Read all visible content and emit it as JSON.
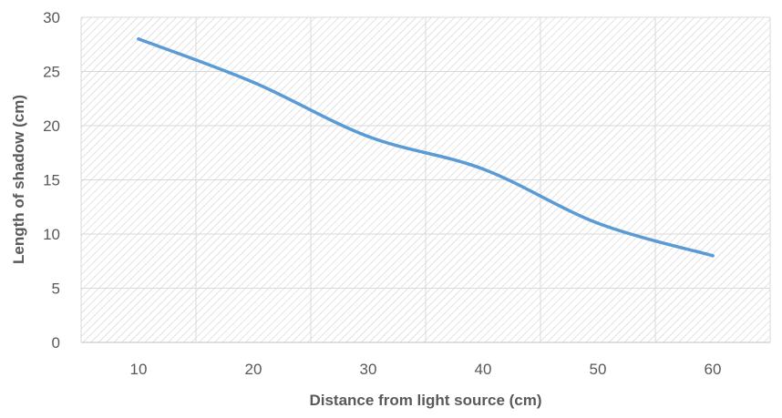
{
  "chart_data": {
    "type": "line",
    "title": "",
    "xlabel": "Distance from light source (cm)",
    "ylabel": "Length of shadow (cm)",
    "x": [
      10,
      20,
      30,
      40,
      50,
      60
    ],
    "series": [
      {
        "values": [
          28,
          24,
          19,
          16,
          11,
          8
        ],
        "color": "#5b9bd5"
      }
    ],
    "ylim": [
      0,
      30
    ],
    "yticks": [
      0,
      5,
      10,
      15,
      20,
      25,
      30
    ],
    "grid": true,
    "background": "diagonal-hatch",
    "legend": "none"
  }
}
